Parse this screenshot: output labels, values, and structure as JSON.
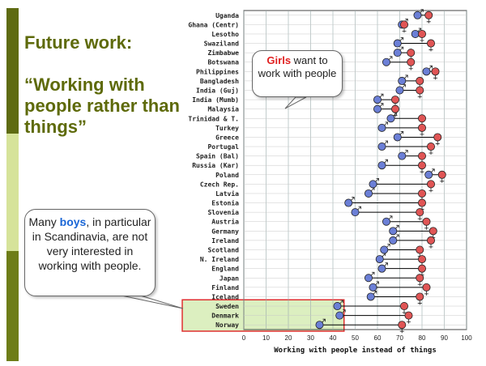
{
  "slide": {
    "title": "Future work:",
    "subtitle": "“Working with people rather than things”"
  },
  "callouts": {
    "girls": {
      "highlight": "Girls",
      "rest": " want to work with people"
    },
    "boys": {
      "before": "Many ",
      "highlight": "boys",
      "after": ", in particular in Scandinavia, are not very interested in working with people."
    }
  },
  "colors": {
    "boys": "#6b7fd6",
    "girls": "#e05555",
    "highlight_box": "#e03030",
    "highlight_fill": "#dcefc0",
    "accent_olive": "#5e6a0a"
  },
  "chart_data": {
    "type": "dumbbell",
    "xlabel": "Working with people instead of things",
    "xlim": [
      0,
      100
    ],
    "xticks": [
      0,
      10,
      20,
      30,
      40,
      50,
      60,
      70,
      80,
      90,
      100
    ],
    "grid": true,
    "categories": [
      "Uganda",
      "Ghana (Centr)",
      "Lesotho",
      "Swaziland",
      "Zimbabwe",
      "Botswana",
      "Philippines",
      "Bangladesh",
      "India (Guj)",
      "India (Mumb)",
      "Malaysia",
      "Trinidad & T.",
      "Turkey",
      "Greece",
      "Portugal",
      "Spain (Bal)",
      "Russia (Kar)",
      "Poland",
      "Czech Rep.",
      "Latvia",
      "Estonia",
      "Slovenia",
      "Austria",
      "Germany",
      "Ireland",
      "Scotland",
      "N. Ireland",
      "England",
      "Japan",
      "Finland",
      "Iceland",
      "Sweden",
      "Denmark",
      "Norway"
    ],
    "series": [
      {
        "key": "boys",
        "values": [
          78,
          71,
          77,
          69,
          69,
          64,
          82,
          71,
          70,
          60,
          60,
          66,
          62,
          69,
          62,
          71,
          62,
          83,
          58,
          56,
          47,
          50,
          64,
          67,
          67,
          63,
          61,
          62,
          56,
          58,
          57,
          42,
          43,
          34
        ]
      },
      {
        "key": "girls",
        "values": [
          83,
          72,
          80,
          84,
          75,
          75,
          86,
          79,
          79,
          68,
          68,
          80,
          80,
          87,
          84,
          80,
          80,
          89,
          84,
          80,
          80,
          79,
          82,
          85,
          84,
          79,
          80,
          80,
          79,
          82,
          79,
          72,
          74,
          71
        ]
      }
    ],
    "highlighted_categories": [
      "Sweden",
      "Denmark",
      "Norway"
    ]
  }
}
